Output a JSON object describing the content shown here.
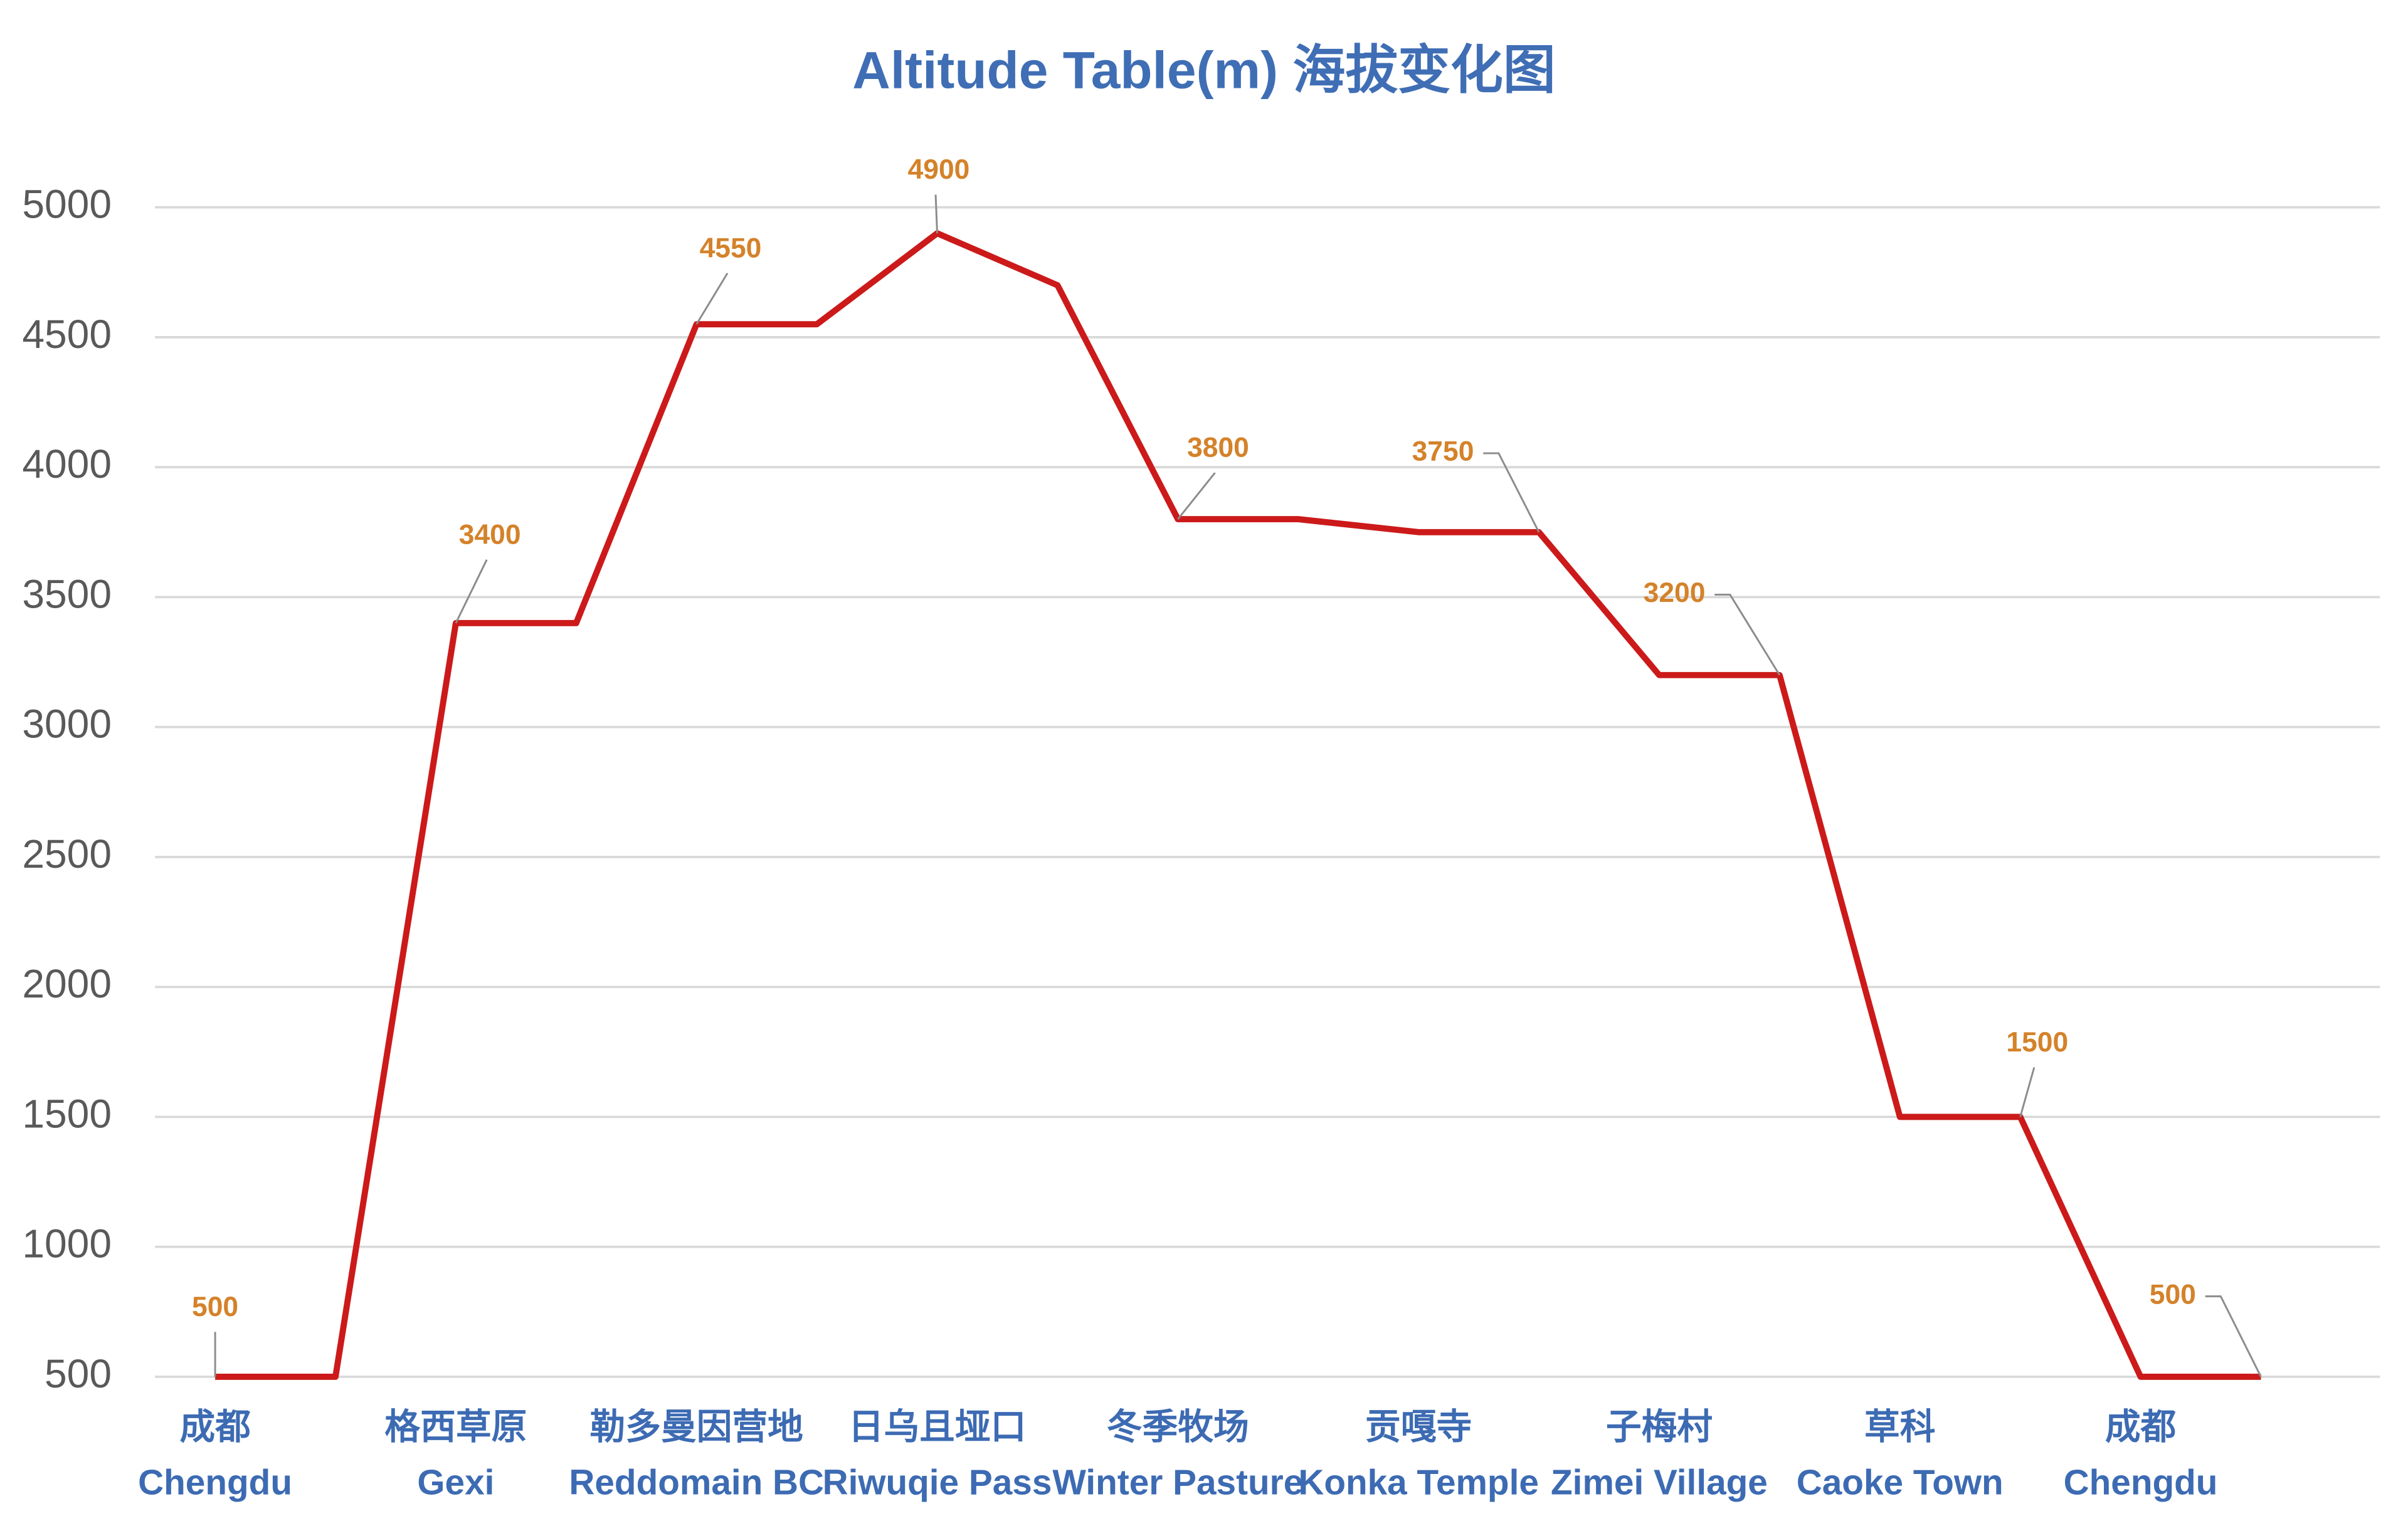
{
  "chart_data": {
    "type": "line",
    "title": "Altitude Table(m) 海拔变化图",
    "categories": [
      [
        "成都",
        "Chengdu"
      ],
      null,
      [
        "格西草原",
        "Gexi"
      ],
      null,
      [
        "勒多曼因营地",
        "Reddomain BC"
      ],
      null,
      [
        "日乌且垭口",
        "Riwuqie Pass"
      ],
      null,
      [
        "冬季牧场",
        "Winter Pasture"
      ],
      null,
      [
        "贡嘎寺",
        "Konka Temple"
      ],
      null,
      [
        "子梅村",
        "Zimei Village"
      ],
      null,
      [
        "草科",
        "Caoke Town"
      ],
      null,
      [
        "成都",
        "Chengdu"
      ],
      null
    ],
    "series": [
      {
        "name": "Altitude",
        "color": "#cc1a1a",
        "values": [
          500,
          500,
          3400,
          3400,
          4550,
          4550,
          4900,
          4700,
          3800,
          3800,
          3750,
          3750,
          3200,
          3200,
          1500,
          1500,
          500,
          500
        ],
        "value_labels": [
          "500",
          null,
          "3400",
          null,
          "4550",
          null,
          "4900",
          null,
          "3800",
          null,
          null,
          "3750",
          null,
          "3200",
          null,
          "1500",
          null,
          "500"
        ]
      }
    ],
    "ylim": [
      500,
      5000
    ],
    "yticks": [
      500,
      1000,
      1500,
      2000,
      2500,
      3000,
      3500,
      4000,
      4500,
      5000
    ],
    "grid": true
  }
}
